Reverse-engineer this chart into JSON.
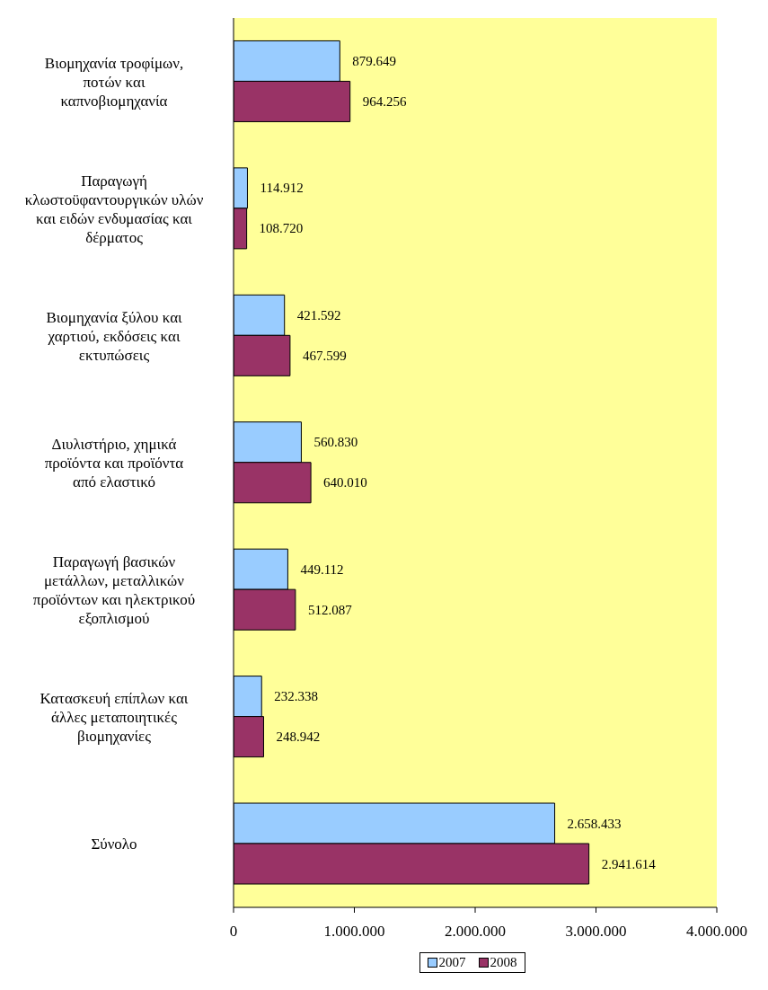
{
  "chart_data": {
    "type": "bar",
    "orientation": "horizontal",
    "categories": [
      "Βιομηχανία τροφίμων, ποτών και καπνοβιομηχανία",
      "Παραγωγή κλωστοϋφαντουργικών υλών και ειδών ενδυμασίας και δέρματος",
      "Βιομηχανία ξύλου και χαρτιού, εκδόσεις και εκτυπώσεις",
      "Διυλιστήριο, χημικά προϊόντα και προϊόντα από ελαστικό",
      "Παραγωγή βασικών μετάλλων, μεταλλικών προϊόντων και ηλεκτρικού εξοπλισμού",
      "Κατασκευή επίπλων και άλλες μεταποιητικές βιομηχανίες",
      "Σύνολο"
    ],
    "series": [
      {
        "name": "2007",
        "color": "#99ccff",
        "values": [
          879649,
          114912,
          421592,
          560830,
          449112,
          232338,
          2658433
        ],
        "value_labels": [
          "879.649",
          "114.912",
          "421.592",
          "560.830",
          "449.112",
          "232.338",
          "2.658.433"
        ]
      },
      {
        "name": "2008",
        "color": "#993366",
        "values": [
          964256,
          108720,
          467599,
          640010,
          512087,
          248942,
          2941614
        ],
        "value_labels": [
          "964.256",
          "108.720",
          "467.599",
          "640.010",
          "512.087",
          "248.942",
          "2.941.614"
        ]
      }
    ],
    "xlim": [
      0,
      4000000
    ],
    "xticks": [
      0,
      {
        "value": 1000000,
        "label": "1.000.000"
      },
      {
        "value": 2000000,
        "label": "2.000.000"
      },
      {
        "value": 3000000,
        "label": "3.000.000"
      },
      {
        "value": 4000000,
        "label": "4.000.000"
      }
    ],
    "grid": false,
    "legend": "bottom"
  }
}
